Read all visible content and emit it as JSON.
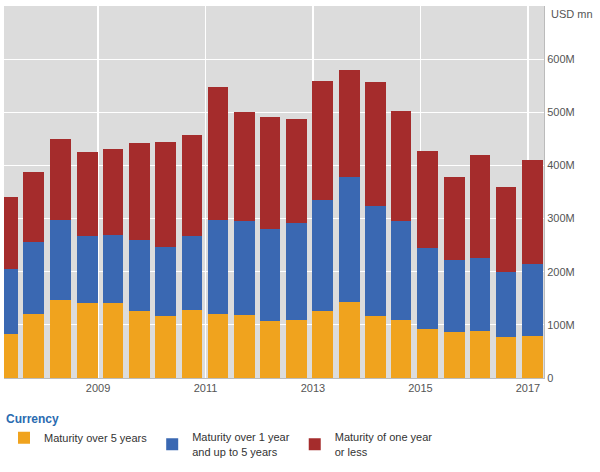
{
  "chart_data": {
    "type": "bar",
    "stacked": true,
    "grid": true,
    "legend": "bottom",
    "legend_title": "Currency",
    "y_unit_label": "USD mn",
    "x": [
      2007.31,
      2007.8,
      2008.3,
      2008.8,
      2009.28,
      2009.77,
      2010.25,
      2010.75,
      2011.23,
      2011.73,
      2012.2,
      2012.7,
      2013.18,
      2013.68,
      2014.16,
      2014.64,
      2015.13,
      2015.63,
      2016.11,
      2016.59,
      2017.08
    ],
    "xlim": [
      2007.25,
      2017.3
    ],
    "xticks": [
      2009,
      2011,
      2013,
      2015,
      2017
    ],
    "ylim": [
      0,
      700
    ],
    "yticks": [
      0,
      {
        "value": 100,
        "label": "100M"
      },
      {
        "value": 200,
        "label": "200M"
      },
      {
        "value": 300,
        "label": "300M"
      },
      {
        "value": 400,
        "label": "400M"
      },
      {
        "value": 500,
        "label": "500M"
      },
      {
        "value": 600,
        "label": "600M"
      }
    ],
    "series": [
      {
        "name": "Maturity over 5 years",
        "color": "#f0a31e",
        "values": [
          82,
          120,
          147,
          141,
          141,
          127,
          117,
          128,
          120,
          118,
          108,
          110,
          126,
          143,
          117,
          110,
          93,
          87,
          89,
          77,
          79
        ]
      },
      {
        "name": "Maturity over 1 year and up to 5 years",
        "color": "#3a68b2",
        "values": [
          123,
          136,
          151,
          127,
          129,
          133,
          130,
          140,
          178,
          178,
          172,
          182,
          209,
          235,
          206,
          185,
          152,
          135,
          137,
          123,
          136
        ]
      },
      {
        "name": "Maturity of one year or less",
        "color": "#a52c2c",
        "values": [
          135,
          132,
          152,
          157,
          160,
          183,
          198,
          190,
          250,
          204,
          212,
          195,
          223,
          202,
          234,
          207,
          182,
          156,
          194,
          160,
          195
        ]
      }
    ]
  }
}
